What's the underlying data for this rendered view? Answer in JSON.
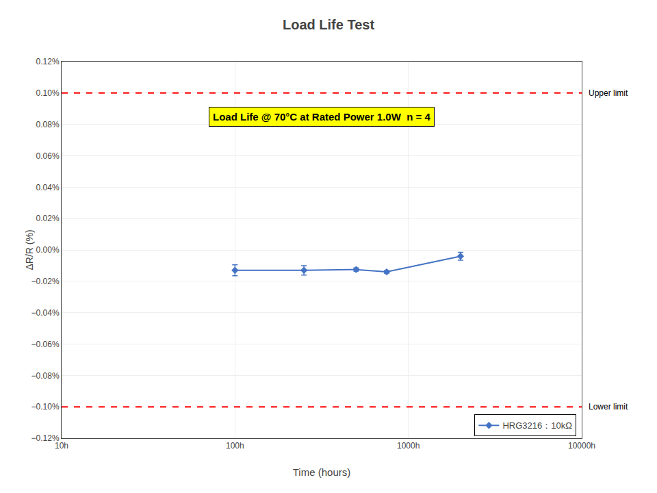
{
  "chart_data": {
    "type": "line",
    "title": "Load Life Test",
    "x_label": "Time (hours)",
    "y_label": "ΔR/R (%)",
    "annotations": [
      {
        "text": "Load Life @ 70°C at Rated Power 1.0W  n = 4",
        "color": "#FFFF00"
      }
    ],
    "x": [
      100,
      250,
      500,
      750,
      2000
    ],
    "series": [
      {
        "name": "HRG3216：10kΩ",
        "color": "#4472C4",
        "marker": "diamond",
        "line_style": "solid",
        "values": [
          -0.013,
          -0.013,
          -0.0125,
          -0.014,
          -0.004
        ],
        "error": [
          0.0035,
          0.003,
          0.001,
          0.0008,
          0.0025
        ]
      }
    ],
    "reference_lines": [
      {
        "value": 0.1,
        "label": "Upper limit",
        "color": "#FF0000",
        "line_style": "dashed"
      },
      {
        "value": -0.1,
        "label": "Lower limit",
        "color": "#FF0000",
        "line_style": "dashed"
      }
    ],
    "log": "x",
    "xlim": [
      10,
      10000
    ],
    "xticks": [
      {
        "value": 10,
        "label": "10h"
      },
      {
        "value": 100,
        "label": "100h"
      },
      {
        "value": 1000,
        "label": "1000h"
      },
      {
        "value": 10000,
        "label": "10000h"
      }
    ],
    "ylim": [
      -0.12,
      0.12
    ],
    "yticks": [
      {
        "value": -0.12,
        "label": "−0.12%"
      },
      {
        "value": -0.1,
        "label": "−0.10%"
      },
      {
        "value": -0.08,
        "label": "−0.08%"
      },
      {
        "value": -0.06,
        "label": "−0.06%"
      },
      {
        "value": -0.04,
        "label": "−0.04%"
      },
      {
        "value": -0.02,
        "label": "−0.02%"
      },
      {
        "value": 0.0,
        "label": "0.00%"
      },
      {
        "value": 0.02,
        "label": "0.02%"
      },
      {
        "value": 0.04,
        "label": "0.04%"
      },
      {
        "value": 0.06,
        "label": "0.06%"
      },
      {
        "value": 0.08,
        "label": "0.08%"
      },
      {
        "value": 0.1,
        "label": "0.10%"
      },
      {
        "value": 0.12,
        "label": "0.12%"
      }
    ],
    "grid": true,
    "legend": "lower right"
  }
}
